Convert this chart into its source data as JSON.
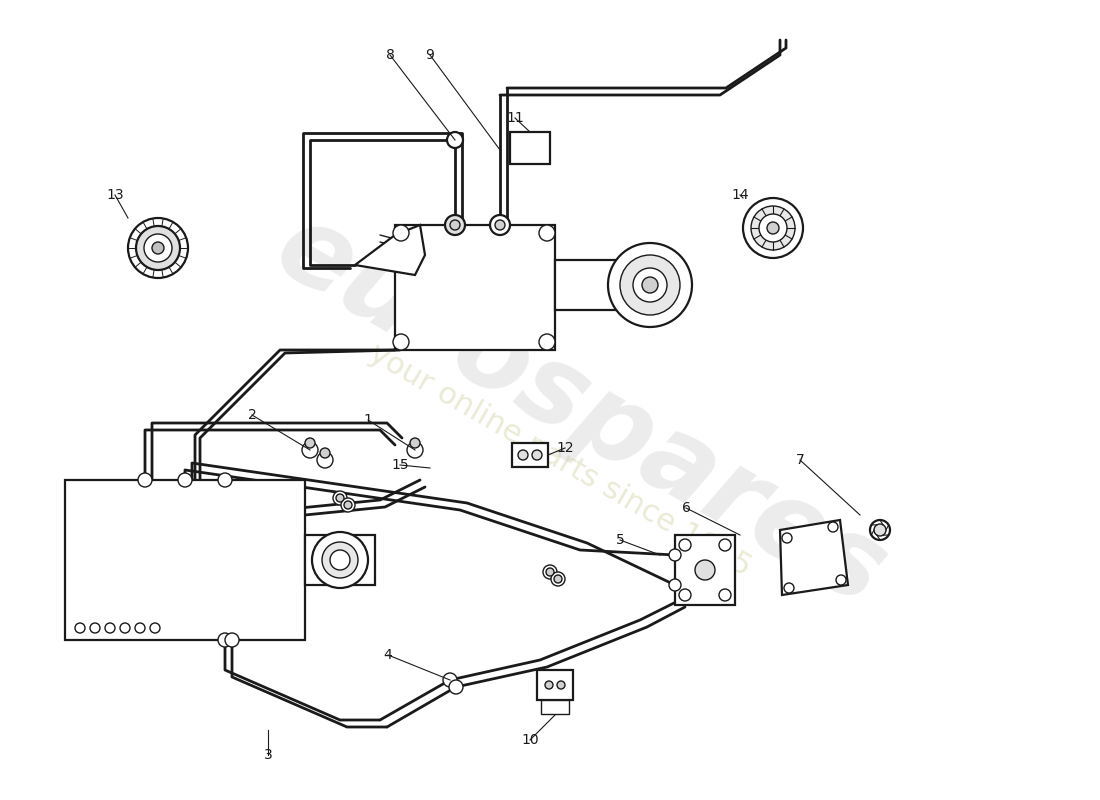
{
  "bg_color": "#ffffff",
  "line_color": "#1a1a1a",
  "watermark1": "eurospares",
  "watermark2": "your online parts since 1985",
  "lw_pipe": 2.0,
  "lw_comp": 1.6,
  "lw_thin": 1.0
}
